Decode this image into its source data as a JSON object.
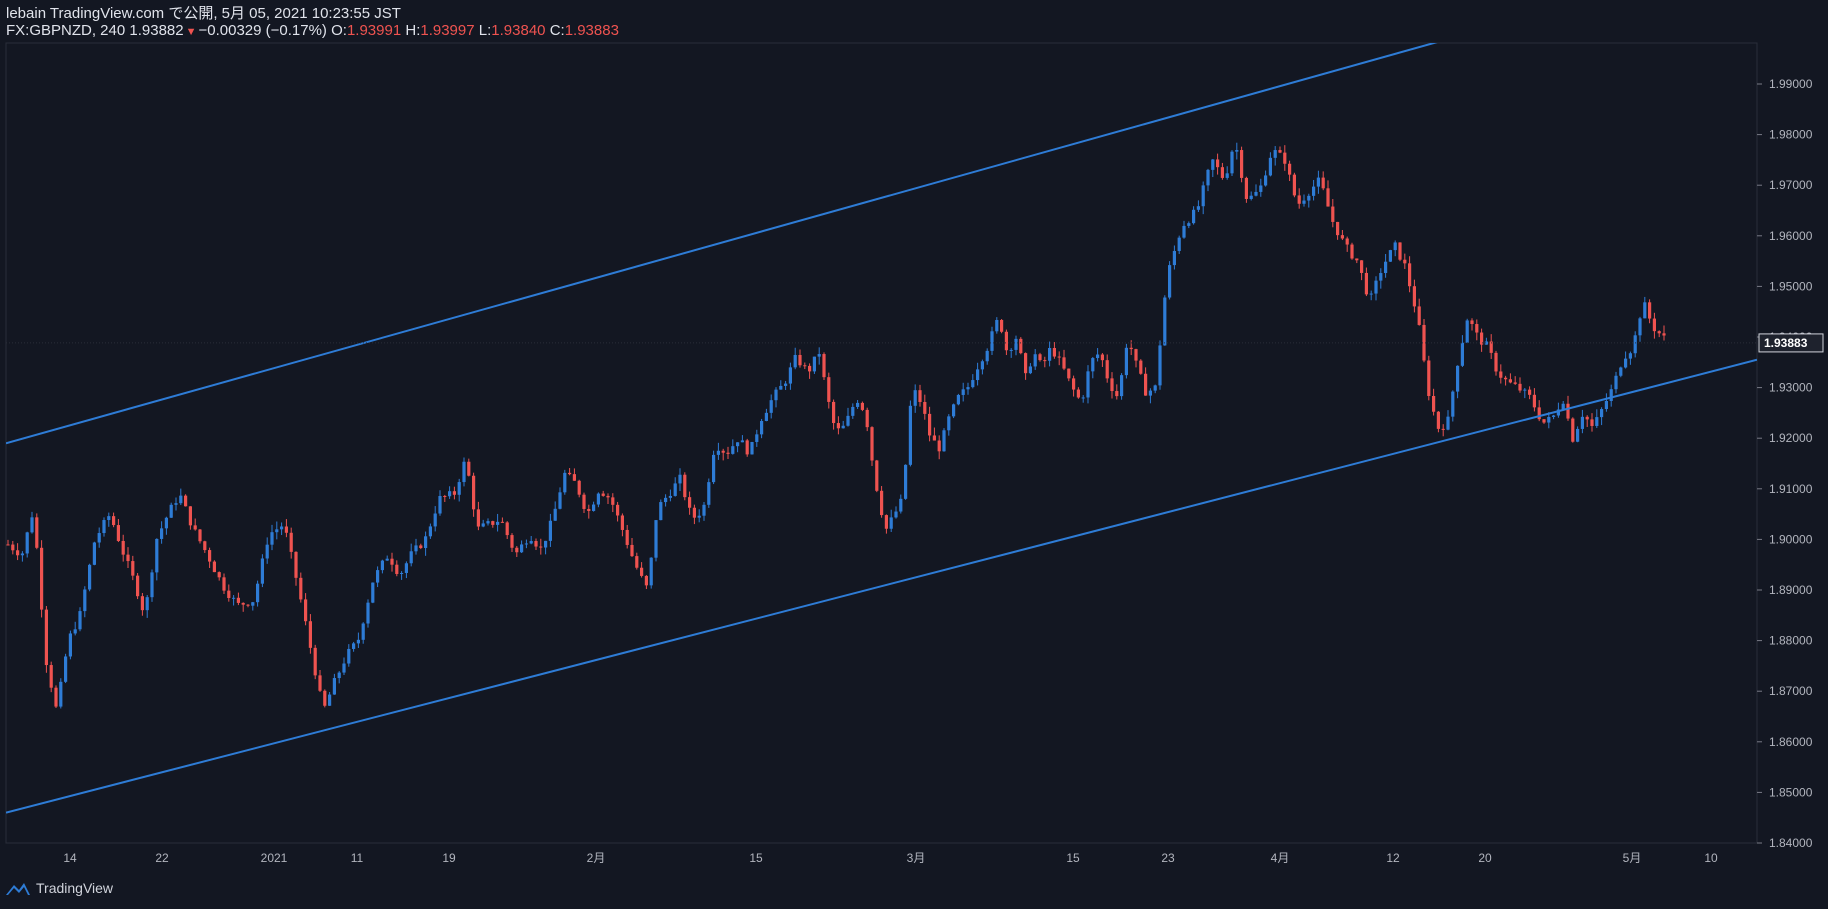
{
  "header": {
    "line1": "lebain TradingView.com で公開, 5月 05, 2021 10:23:55 JST",
    "symbol": "FX:GBPNZD, 240",
    "last": "1.93882",
    "change": "−0.00329 (−0.17%)",
    "o_label": "O:",
    "o_value": "1.93991",
    "h_label": "H:",
    "h_value": "1.93997",
    "l_label": "L:",
    "l_value": "1.93840",
    "c_label": "C:",
    "c_value": "1.93883"
  },
  "footer": {
    "brand": "TradingView"
  },
  "colors": {
    "background": "#131722",
    "up": "#2e7cd6",
    "down": "#ef5350",
    "channel": "#2e7cd6"
  },
  "chart_data": {
    "type": "candlestick",
    "symbol": "GBPNZD",
    "interval": "240",
    "ylim": [
      1.84,
      1.99
    ],
    "y_ticks": [
      "1.99000",
      "1.98000",
      "1.97000",
      "1.96000",
      "1.95000",
      "1.94000",
      "1.93000",
      "1.92000",
      "1.91000",
      "1.90000",
      "1.89000",
      "1.88000",
      "1.87000",
      "1.86000",
      "1.85000",
      "1.84000"
    ],
    "x_ticks": [
      "14",
      "22",
      "2021",
      "11",
      "19",
      "2月",
      "15",
      "3月",
      "15",
      "23",
      "4月",
      "12",
      "20",
      "5月",
      "10"
    ],
    "last_price_label": "1.93883",
    "channel_lines": [
      {
        "name": "upper",
        "start": [
          0,
          1.919
        ],
        "end": [
          1,
          2.016
        ]
      },
      {
        "name": "lower",
        "start": [
          0,
          1.846
        ],
        "end": [
          1,
          1.9355
        ]
      }
    ],
    "close_path": [
      [
        0.0,
        1.899
      ],
      [
        0.012,
        1.897
      ],
      [
        0.022,
        1.906
      ],
      [
        0.033,
        1.876
      ],
      [
        0.042,
        1.866
      ],
      [
        0.052,
        1.88
      ],
      [
        0.062,
        1.885
      ],
      [
        0.075,
        1.9
      ],
      [
        0.088,
        1.905
      ],
      [
        0.1,
        1.897
      ],
      [
        0.11,
        1.891
      ],
      [
        0.118,
        1.885
      ],
      [
        0.128,
        1.9
      ],
      [
        0.138,
        1.905
      ],
      [
        0.148,
        1.909
      ],
      [
        0.16,
        1.902
      ],
      [
        0.172,
        1.897
      ],
      [
        0.185,
        1.891
      ],
      [
        0.198,
        1.887
      ],
      [
        0.212,
        1.888
      ],
      [
        0.225,
        1.901
      ],
      [
        0.238,
        1.903
      ],
      [
        0.25,
        1.891
      ],
      [
        0.258,
        1.882
      ],
      [
        0.265,
        1.874
      ],
      [
        0.272,
        1.866
      ],
      [
        0.282,
        1.872
      ],
      [
        0.292,
        1.877
      ],
      [
        0.302,
        1.88
      ],
      [
        0.315,
        1.892
      ],
      [
        0.328,
        1.897
      ],
      [
        0.338,
        1.893
      ],
      [
        0.348,
        1.897
      ],
      [
        0.36,
        1.9
      ],
      [
        0.372,
        1.908
      ],
      [
        0.385,
        1.909
      ],
      [
        0.395,
        1.916
      ],
      [
        0.405,
        1.902
      ],
      [
        0.415,
        1.903
      ],
      [
        0.425,
        1.904
      ],
      [
        0.438,
        1.897
      ],
      [
        0.45,
        1.901
      ],
      [
        0.46,
        1.898
      ],
      [
        0.47,
        1.904
      ],
      [
        0.48,
        1.913
      ],
      [
        0.49,
        1.911
      ],
      [
        0.5,
        1.905
      ],
      [
        0.51,
        1.91
      ],
      [
        0.52,
        1.908
      ],
      [
        0.53,
        1.902
      ],
      [
        0.538,
        1.897
      ],
      [
        0.545,
        1.893
      ],
      [
        0.552,
        1.89
      ],
      [
        0.56,
        1.906
      ],
      [
        0.57,
        1.909
      ],
      [
        0.58,
        1.912
      ],
      [
        0.59,
        1.904
      ],
      [
        0.6,
        1.906
      ],
      [
        0.61,
        1.919
      ],
      [
        0.62,
        1.917
      ],
      [
        0.63,
        1.92
      ],
      [
        0.64,
        1.917
      ],
      [
        0.65,
        1.924
      ],
      [
        0.66,
        1.928
      ],
      [
        0.67,
        1.931
      ],
      [
        0.68,
        1.936
      ],
      [
        0.69,
        1.933
      ],
      [
        0.7,
        1.937
      ],
      [
        0.706,
        1.929
      ],
      [
        0.712,
        1.923
      ],
      [
        0.718,
        1.921
      ],
      [
        0.725,
        1.924
      ],
      [
        0.732,
        1.928
      ],
      [
        0.74,
        1.925
      ],
      [
        0.746,
        1.915
      ],
      [
        0.752,
        1.907
      ],
      [
        0.758,
        1.902
      ],
      [
        0.765,
        1.905
      ],
      [
        0.772,
        1.908
      ],
      [
        0.78,
        1.93
      ],
      [
        0.788,
        1.927
      ],
      [
        0.796,
        1.92
      ],
      [
        0.804,
        1.918
      ],
      [
        0.812,
        1.924
      ],
      [
        0.82,
        1.928
      ],
      [
        0.828,
        1.93
      ],
      [
        0.836,
        1.934
      ],
      [
        0.845,
        1.938
      ],
      [
        0.855,
        1.944
      ],
      [
        0.862,
        1.937
      ],
      [
        0.87,
        1.94
      ],
      [
        0.878,
        1.932
      ],
      [
        0.885,
        1.937
      ],
      [
        0.892,
        1.934
      ],
      [
        0.9,
        1.938
      ],
      [
        0.91,
        1.934
      ],
      [
        0.918,
        1.93
      ],
      [
        0.926,
        1.927
      ],
      [
        0.934,
        1.935
      ],
      [
        0.942,
        1.937
      ],
      [
        0.95,
        1.931
      ],
      [
        0.958,
        1.928
      ],
      [
        0.966,
        1.94
      ],
      [
        0.974,
        1.934
      ],
      [
        0.982,
        1.929
      ],
      [
        0.99,
        1.93
      ],
      [
        1.0,
        1.952
      ]
    ],
    "close_path_2": [
      [
        0.0,
        1.952
      ],
      [
        0.03,
        1.962
      ],
      [
        0.06,
        1.965
      ],
      [
        0.09,
        1.975
      ],
      [
        0.115,
        1.971
      ],
      [
        0.135,
        1.979
      ],
      [
        0.16,
        1.967
      ],
      [
        0.185,
        1.969
      ],
      [
        0.21,
        1.977
      ],
      [
        0.235,
        1.975
      ],
      [
        0.26,
        1.966
      ],
      [
        0.285,
        1.969
      ],
      [
        0.305,
        1.971
      ],
      [
        0.33,
        1.963
      ],
      [
        0.355,
        1.958
      ],
      [
        0.38,
        1.955
      ],
      [
        0.405,
        1.947
      ],
      [
        0.43,
        1.954
      ],
      [
        0.455,
        1.958
      ],
      [
        0.475,
        1.954
      ],
      [
        0.5,
        1.944
      ],
      [
        0.52,
        1.93
      ],
      [
        0.54,
        1.922
      ],
      [
        0.56,
        1.923
      ],
      [
        0.58,
        1.935
      ],
      [
        0.6,
        1.944
      ],
      [
        0.62,
        1.94
      ],
      [
        0.64,
        1.938
      ],
      [
        0.66,
        1.933
      ],
      [
        0.68,
        1.931
      ],
      [
        0.7,
        1.93
      ],
      [
        0.725,
        1.928
      ],
      [
        0.75,
        1.923
      ],
      [
        0.77,
        1.924
      ],
      [
        0.79,
        1.928
      ],
      [
        0.81,
        1.92
      ],
      [
        0.83,
        1.925
      ],
      [
        0.85,
        1.922
      ],
      [
        0.87,
        1.926
      ],
      [
        0.89,
        1.93
      ],
      [
        0.91,
        1.936
      ],
      [
        0.93,
        1.938
      ],
      [
        0.95,
        1.947
      ],
      [
        0.97,
        1.942
      ],
      [
        1.0,
        1.939
      ]
    ]
  }
}
